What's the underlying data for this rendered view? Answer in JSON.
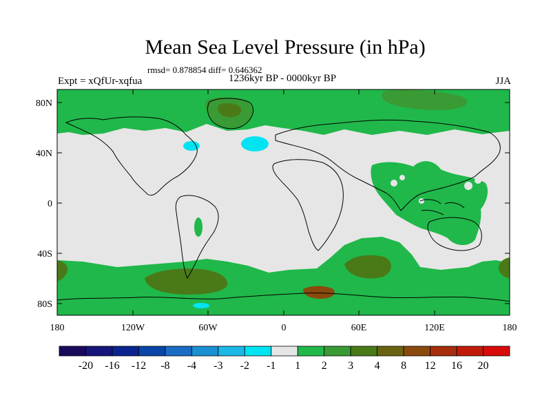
{
  "title": "Mean Sea Level Pressure (in hPa)",
  "stats": "rmsd= 0.878854 diff= 0.646362",
  "experiment": "Expt = xQfUr-xqfua",
  "period": "1236kyr BP - 0000kyr BP",
  "season": "JJA",
  "axes": {
    "x_ticks": [
      "180",
      "120W",
      "60W",
      "0",
      "60E",
      "120E",
      "180"
    ],
    "y_ticks": [
      "80N",
      "40N",
      "0",
      "40S",
      "80S"
    ]
  },
  "colorbar": {
    "labels": [
      "-20",
      "-16",
      "-12",
      "-8",
      "-4",
      "-3",
      "-2",
      "-1",
      "1",
      "2",
      "3",
      "4",
      "8",
      "12",
      "16",
      "20"
    ],
    "colors": [
      "#1a0a5c",
      "#15157a",
      "#0a2590",
      "#0a45a8",
      "#1a6cc4",
      "#1a8fd2",
      "#1ab8e6",
      "#00e4f2",
      "#e6e6e6",
      "#20b84a",
      "#3a9a34",
      "#4a7a18",
      "#6a6412",
      "#8a4a0e",
      "#a62e0c",
      "#c01a0a",
      "#d80a0a"
    ]
  },
  "field_colors": {
    "ocean_background": "#e6e6e6",
    "positive_1_2": "#20b84a",
    "positive_2_3": "#3a9a34",
    "positive_3_4": "#4a7a18",
    "positive_4_8": "#6a6412",
    "negative_1_2": "#00e4f2",
    "negative_2_3": "#1ab8e6"
  }
}
